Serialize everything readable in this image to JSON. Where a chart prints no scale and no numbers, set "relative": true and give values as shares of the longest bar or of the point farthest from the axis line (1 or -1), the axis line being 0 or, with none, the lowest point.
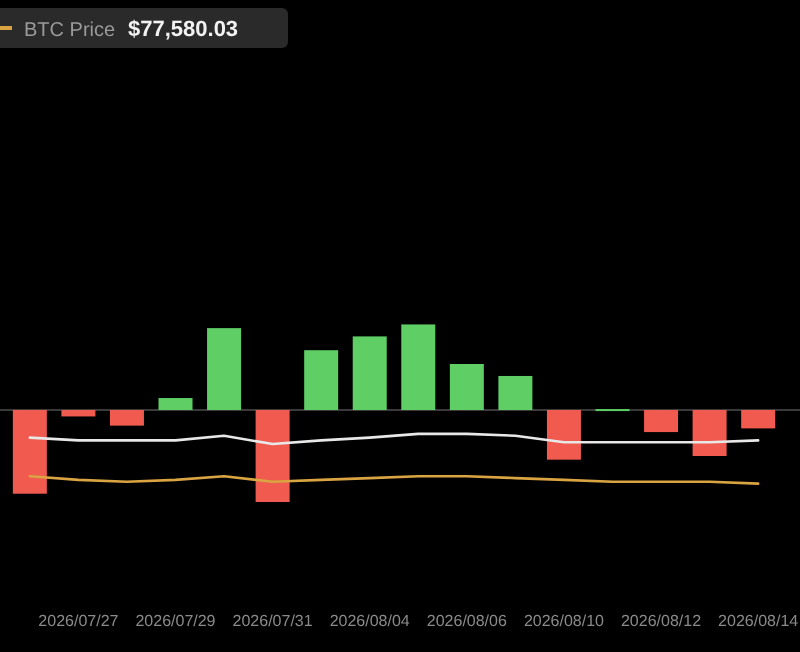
{
  "chart_data": {
    "type": "bar",
    "relative": true,
    "legend": "top left",
    "categories": [
      null,
      "2026/07/27",
      null,
      "2026/07/29",
      null,
      "2026/07/31",
      null,
      "2026/08/04",
      null,
      "2026/08/06",
      null,
      "2026/08/10",
      null,
      "2026/08/12",
      null,
      "2026/08/14"
    ],
    "series": [
      {
        "colors": [
          "#f05a4f",
          "#f05a4f",
          "#f05a4f",
          "#5fcf65",
          "#5fcf65",
          "#f05a4f",
          "#5fcf65",
          "#5fcf65",
          "#5fcf65",
          "#5fcf65",
          "#5fcf65",
          "#f05a4f",
          "#5fcf65",
          "#f05a4f",
          "#f05a4f",
          "#f05a4f"
        ],
        "values": [
          -0.91,
          -0.07,
          -0.17,
          0.13,
          0.89,
          -1,
          0.65,
          0.8,
          0.93,
          0.5,
          0.37,
          -0.54,
          0.01,
          -0.24,
          -0.5,
          -0.2
        ]
      },
      {
        "type": "line",
        "color": "#e8e8e8",
        "values": [
          -0.3,
          -0.33,
          -0.33,
          -0.33,
          -0.28,
          -0.37,
          -0.33,
          -0.3,
          -0.26,
          -0.26,
          -0.28,
          -0.35,
          -0.35,
          -0.35,
          -0.35,
          -0.33
        ]
      },
      {
        "type": "line",
        "name": "BTC Price",
        "color": "#d9a441",
        "values": [
          -0.72,
          -0.76,
          -0.78,
          -0.76,
          -0.72,
          -0.78,
          -0.76,
          -0.74,
          -0.72,
          -0.72,
          -0.74,
          -0.76,
          -0.78,
          -0.78,
          -0.78,
          -0.8
        ]
      }
    ],
    "annotations": [
      "$77,580.03"
    ]
  }
}
